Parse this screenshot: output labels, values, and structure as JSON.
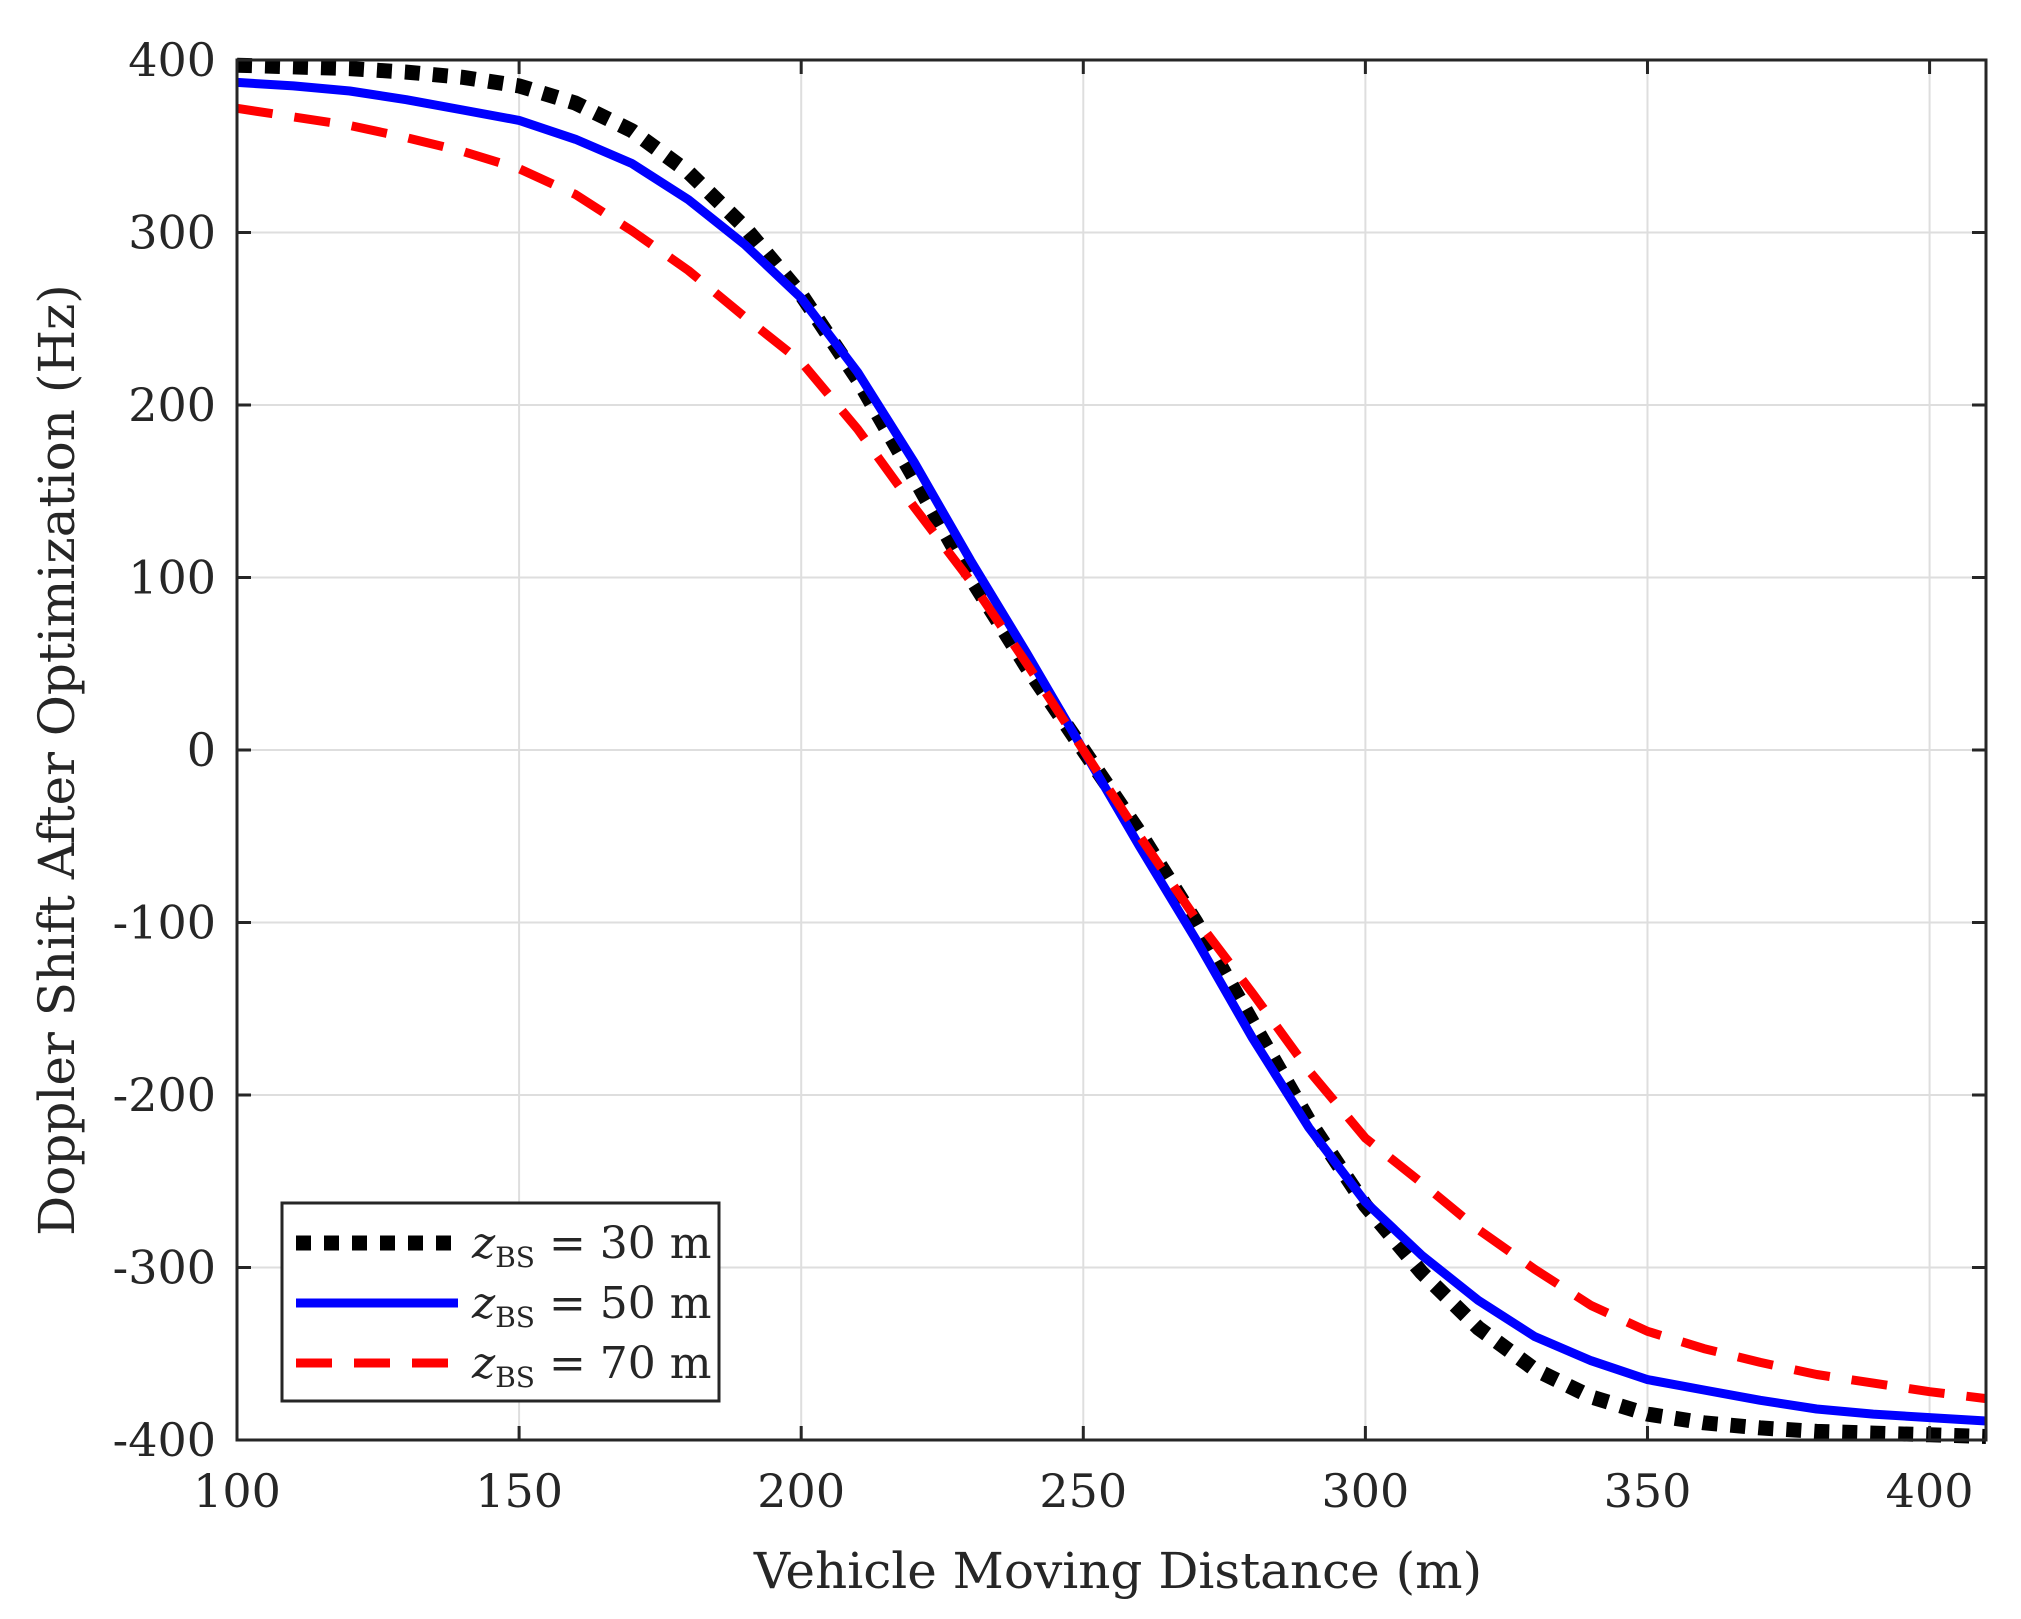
{
  "chart_data": {
    "type": "line",
    "title": "",
    "xlabel": "Vehicle Moving Distance (m)",
    "ylabel": "Doppler Shift After Optimization (Hz)",
    "xlim": [
      100,
      410
    ],
    "ylim": [
      -400,
      400
    ],
    "xticks": [
      100,
      150,
      200,
      250,
      300,
      350,
      400
    ],
    "yticks": [
      -400,
      -300,
      -200,
      -100,
      0,
      100,
      200,
      300,
      400
    ],
    "xtick_labels": [
      "100",
      "150",
      "200",
      "250",
      "300",
      "350",
      "400"
    ],
    "ytick_labels": [
      "-400",
      "-300",
      "-200",
      "-100",
      "0",
      "100",
      "200",
      "300",
      "400"
    ],
    "grid": true,
    "legend_position": "bottom-left",
    "x": [
      100,
      110,
      120,
      130,
      140,
      150,
      160,
      170,
      180,
      190,
      200,
      210,
      220,
      230,
      240,
      250,
      260,
      270,
      280,
      290,
      300,
      310,
      320,
      330,
      340,
      350,
      360,
      370,
      380,
      390,
      400,
      410
    ],
    "series": [
      {
        "name": "z_BS = 30 m",
        "legend_var": "z",
        "legend_sub": "BS",
        "legend_rest": " = 30 m",
        "color": "#000000",
        "style": "dotted",
        "values": [
          397,
          396,
          395,
          393,
          390,
          385,
          375,
          359,
          335,
          303,
          264,
          215,
          158,
          100,
          48,
          0,
          -48,
          -100,
          -158,
          -215,
          -264,
          -303,
          -335,
          -359,
          -375,
          -385,
          -390,
          -393,
          -395,
          -396,
          -397,
          -398
        ]
      },
      {
        "name": "z_BS = 50 m",
        "legend_var": "z",
        "legend_sub": "BS",
        "legend_rest": " = 50 m",
        "color": "#0000ff",
        "style": "solid",
        "values": [
          387,
          385,
          382,
          377,
          371,
          365,
          354,
          340,
          319,
          293,
          262,
          219,
          167,
          110,
          56,
          0,
          -56,
          -110,
          -167,
          -219,
          -262,
          -293,
          -319,
          -340,
          -354,
          -365,
          -371,
          -377,
          -382,
          -385,
          -387,
          -389
        ]
      },
      {
        "name": "z_BS = 70 m",
        "legend_var": "z",
        "legend_sub": "BS",
        "legend_rest": " = 70 m",
        "color": "#ff0000",
        "style": "dashed",
        "values": [
          372,
          367,
          362,
          355,
          347,
          337,
          322,
          301,
          278,
          251,
          225,
          186,
          141,
          98,
          50,
          0,
          -50,
          -98,
          -141,
          -186,
          -225,
          -251,
          -278,
          -301,
          -322,
          -337,
          -347,
          -355,
          -362,
          -367,
          -372,
          -376
        ]
      }
    ]
  }
}
